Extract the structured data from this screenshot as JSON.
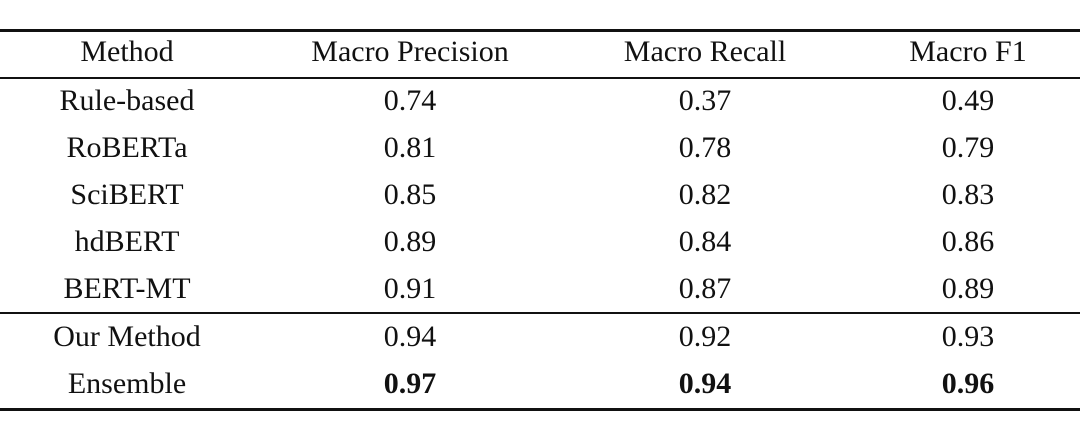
{
  "table": {
    "header": [
      "Method",
      "Macro Precision",
      "Macro Recall",
      "Macro F1"
    ],
    "rows": [
      [
        "Rule-based",
        "0.74",
        "0.37",
        "0.49"
      ],
      [
        "RoBERTa",
        "0.81",
        "0.78",
        "0.79"
      ],
      [
        "SciBERT",
        "0.85",
        "0.82",
        "0.83"
      ],
      [
        "hdBERT",
        "0.89",
        "0.84",
        "0.86"
      ],
      [
        "BERT-MT",
        "0.91",
        "0.87",
        "0.89"
      ],
      [
        "Our Method",
        "0.94",
        "0.92",
        "0.93"
      ],
      [
        "Ensemble",
        "0.97",
        "0.94",
        "0.96"
      ]
    ]
  }
}
